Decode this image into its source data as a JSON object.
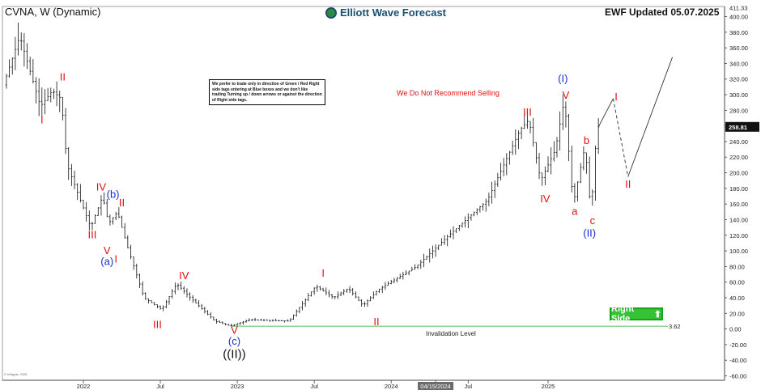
{
  "header": {
    "symbol_title": "CVNA, W (Dynamic)",
    "brand": "Elliott Wave Forecast",
    "updated": "EWF Updated 05.07.2025"
  },
  "note_box": "We prefer to trade only in direction of Green / Red Right side tags entering at Blue boxes and we don't like trading Turning up / down arrows or against the direction of Right side tags.",
  "recommendation": "We Do Not Recommend Selling",
  "right_side_tag": "Right Side",
  "right_side_arrow": "⬆",
  "invalidation": {
    "label": "Invalidation Level",
    "value": "3.62",
    "value_num": 3.62
  },
  "copyright": "© eSignal, 2025",
  "colors": {
    "bar": "#111111",
    "wave_red": "#e01010",
    "wave_blue": "#1a2fd0",
    "wave_black": "#111111",
    "invalid_line": "#2ca02c",
    "price_tag": "#111111"
  },
  "chart_data": {
    "type": "ohlc",
    "yaxis": {
      "ylim": [
        -60,
        411.33
      ],
      "ticks": [
        "400.00",
        "380.00",
        "360.00",
        "340.00",
        "320.00",
        "300.00",
        "280.00",
        "260.00",
        "240.00",
        "220.00",
        "200.00",
        "180.00",
        "160.00",
        "140.00",
        "120.00",
        "100.00",
        "80.00",
        "60.00",
        "40.00",
        "20.00",
        "0.00",
        "-20.00",
        "-40.00",
        "-60.00"
      ],
      "top_tag": "411.33",
      "last_price_tag": "258.81",
      "last_price": 258.81
    },
    "xaxis": {
      "xlim": [
        "2021-01-04",
        "2025-12-29"
      ],
      "ticks": [
        {
          "label": "2022",
          "date": "2022-01-03"
        },
        {
          "label": "Jul",
          "date": "2022-07-04"
        },
        {
          "label": "2023",
          "date": "2023-01-02"
        },
        {
          "label": "Jul",
          "date": "2023-07-03"
        },
        {
          "label": "2024",
          "date": "2024-01-01"
        },
        {
          "label": "04/15/2024",
          "date": "2024-04-15",
          "highlight": true
        },
        {
          "label": "Jul",
          "date": "2024-07-01"
        },
        {
          "label": "2025",
          "date": "2025-01-06"
        }
      ]
    },
    "price_path": [
      [
        "2021-01-04",
        240
      ],
      [
        "2021-03-01",
        320
      ],
      [
        "2021-05-24",
        250
      ],
      [
        "2021-08-09",
        375
      ],
      [
        "2021-09-27",
        285
      ],
      [
        "2021-10-25",
        305
      ],
      [
        "2021-11-15",
        295
      ],
      [
        "2021-11-29",
        210
      ],
      [
        "2022-01-24",
        130
      ],
      [
        "2022-02-21",
        170
      ],
      [
        "2022-03-07",
        135
      ],
      [
        "2022-03-28",
        150
      ],
      [
        "2022-04-18",
        110
      ],
      [
        "2022-05-30",
        40
      ],
      [
        "2022-06-27",
        30
      ],
      [
        "2022-07-11",
        25
      ],
      [
        "2022-08-15",
        58
      ],
      [
        "2022-09-26",
        35
      ],
      [
        "2022-11-14",
        10
      ],
      [
        "2022-12-19",
        4
      ],
      [
        "2023-02-06",
        12
      ],
      [
        "2023-05-08",
        10
      ],
      [
        "2023-07-10",
        55
      ],
      [
        "2023-08-21",
        40
      ],
      [
        "2023-09-25",
        52
      ],
      [
        "2023-10-30",
        30
      ],
      [
        "2023-12-04",
        50
      ],
      [
        "2024-03-04",
        80
      ],
      [
        "2024-05-20",
        120
      ],
      [
        "2024-08-19",
        165
      ],
      [
        "2024-11-04",
        255
      ],
      [
        "2024-11-25",
        268
      ],
      [
        "2024-12-23",
        190
      ],
      [
        "2025-01-27",
        230
      ],
      [
        "2025-02-17",
        295
      ],
      [
        "2025-03-10",
        160
      ],
      [
        "2025-04-07",
        235
      ],
      [
        "2025-04-21",
        148
      ],
      [
        "2025-05-05",
        258.81
      ]
    ],
    "projection": [
      {
        "date": "2025-05-05",
        "price": 258.81
      },
      {
        "date": "2025-06-09",
        "price": 295
      },
      {
        "date": "2025-07-14",
        "price": 195
      },
      {
        "date": "2025-10-27",
        "price": 348
      }
    ],
    "projection_dashed_segment": 1,
    "wave_labels": [
      {
        "text": "((I))",
        "date": "2021-01-11",
        "price": 386,
        "color": "#111111",
        "size": 15
      },
      {
        "text": "II",
        "date": "2021-11-15",
        "price": 318,
        "color": "#e01010",
        "size": 13
      },
      {
        "text": "I",
        "date": "2021-09-27",
        "price": 263,
        "color": "#e01010",
        "size": 13
      },
      {
        "text": "IV",
        "date": "2022-02-14",
        "price": 177,
        "color": "#e01010",
        "size": 13
      },
      {
        "text": "(b)",
        "date": "2022-03-14",
        "price": 168,
        "color": "#1a2fd0",
        "size": 13
      },
      {
        "text": "II",
        "date": "2022-04-04",
        "price": 157,
        "color": "#e01010",
        "size": 13
      },
      {
        "text": "III",
        "date": "2022-01-24",
        "price": 116,
        "color": "#e01010",
        "size": 13
      },
      {
        "text": "V",
        "date": "2022-02-28",
        "price": 96,
        "color": "#e01010",
        "size": 13
      },
      {
        "text": "(a)",
        "date": "2022-02-28",
        "price": 82,
        "color": "#1a2fd0",
        "size": 13
      },
      {
        "text": "I",
        "date": "2022-03-21",
        "price": 85,
        "color": "#e01010",
        "size": 13
      },
      {
        "text": "III",
        "date": "2022-06-27",
        "price": 1,
        "color": "#e01010",
        "size": 13
      },
      {
        "text": "IV",
        "date": "2022-08-29",
        "price": 64,
        "color": "#e01010",
        "size": 13
      },
      {
        "text": "V",
        "date": "2022-12-26",
        "price": -6,
        "color": "#e01010",
        "size": 13
      },
      {
        "text": "(c)",
        "date": "2022-12-26",
        "price": -20,
        "color": "#1a2fd0",
        "size": 13
      },
      {
        "text": "((II))",
        "date": "2022-12-26",
        "price": -37,
        "color": "#111111",
        "size": 15
      },
      {
        "text": "I",
        "date": "2023-07-24",
        "price": 67,
        "color": "#e01010",
        "size": 13
      },
      {
        "text": "II",
        "date": "2023-11-27",
        "price": 5,
        "color": "#e01010",
        "size": 13
      },
      {
        "text": "III",
        "date": "2024-11-18",
        "price": 273,
        "color": "#e01010",
        "size": 13
      },
      {
        "text": "IV",
        "date": "2024-12-30",
        "price": 162,
        "color": "#e01010",
        "size": 13
      },
      {
        "text": "(I)",
        "date": "2025-02-10",
        "price": 316,
        "color": "#1a2fd0",
        "size": 13
      },
      {
        "text": "V",
        "date": "2025-02-17",
        "price": 295,
        "color": "#e01010",
        "size": 13
      },
      {
        "text": "b",
        "date": "2025-04-07",
        "price": 237,
        "color": "#e01010",
        "size": 13
      },
      {
        "text": "a",
        "date": "2025-03-10",
        "price": 146,
        "color": "#e01010",
        "size": 13
      },
      {
        "text": "c",
        "date": "2025-04-21",
        "price": 134,
        "color": "#e01010",
        "size": 13
      },
      {
        "text": "(II)",
        "date": "2025-04-14",
        "price": 118,
        "color": "#1a2fd0",
        "size": 13
      },
      {
        "text": "I",
        "date": "2025-06-16",
        "price": 293,
        "color": "#e01010",
        "size": 13
      },
      {
        "text": "II",
        "date": "2025-07-14",
        "price": 181,
        "color": "#e01010",
        "size": 13
      }
    ]
  }
}
